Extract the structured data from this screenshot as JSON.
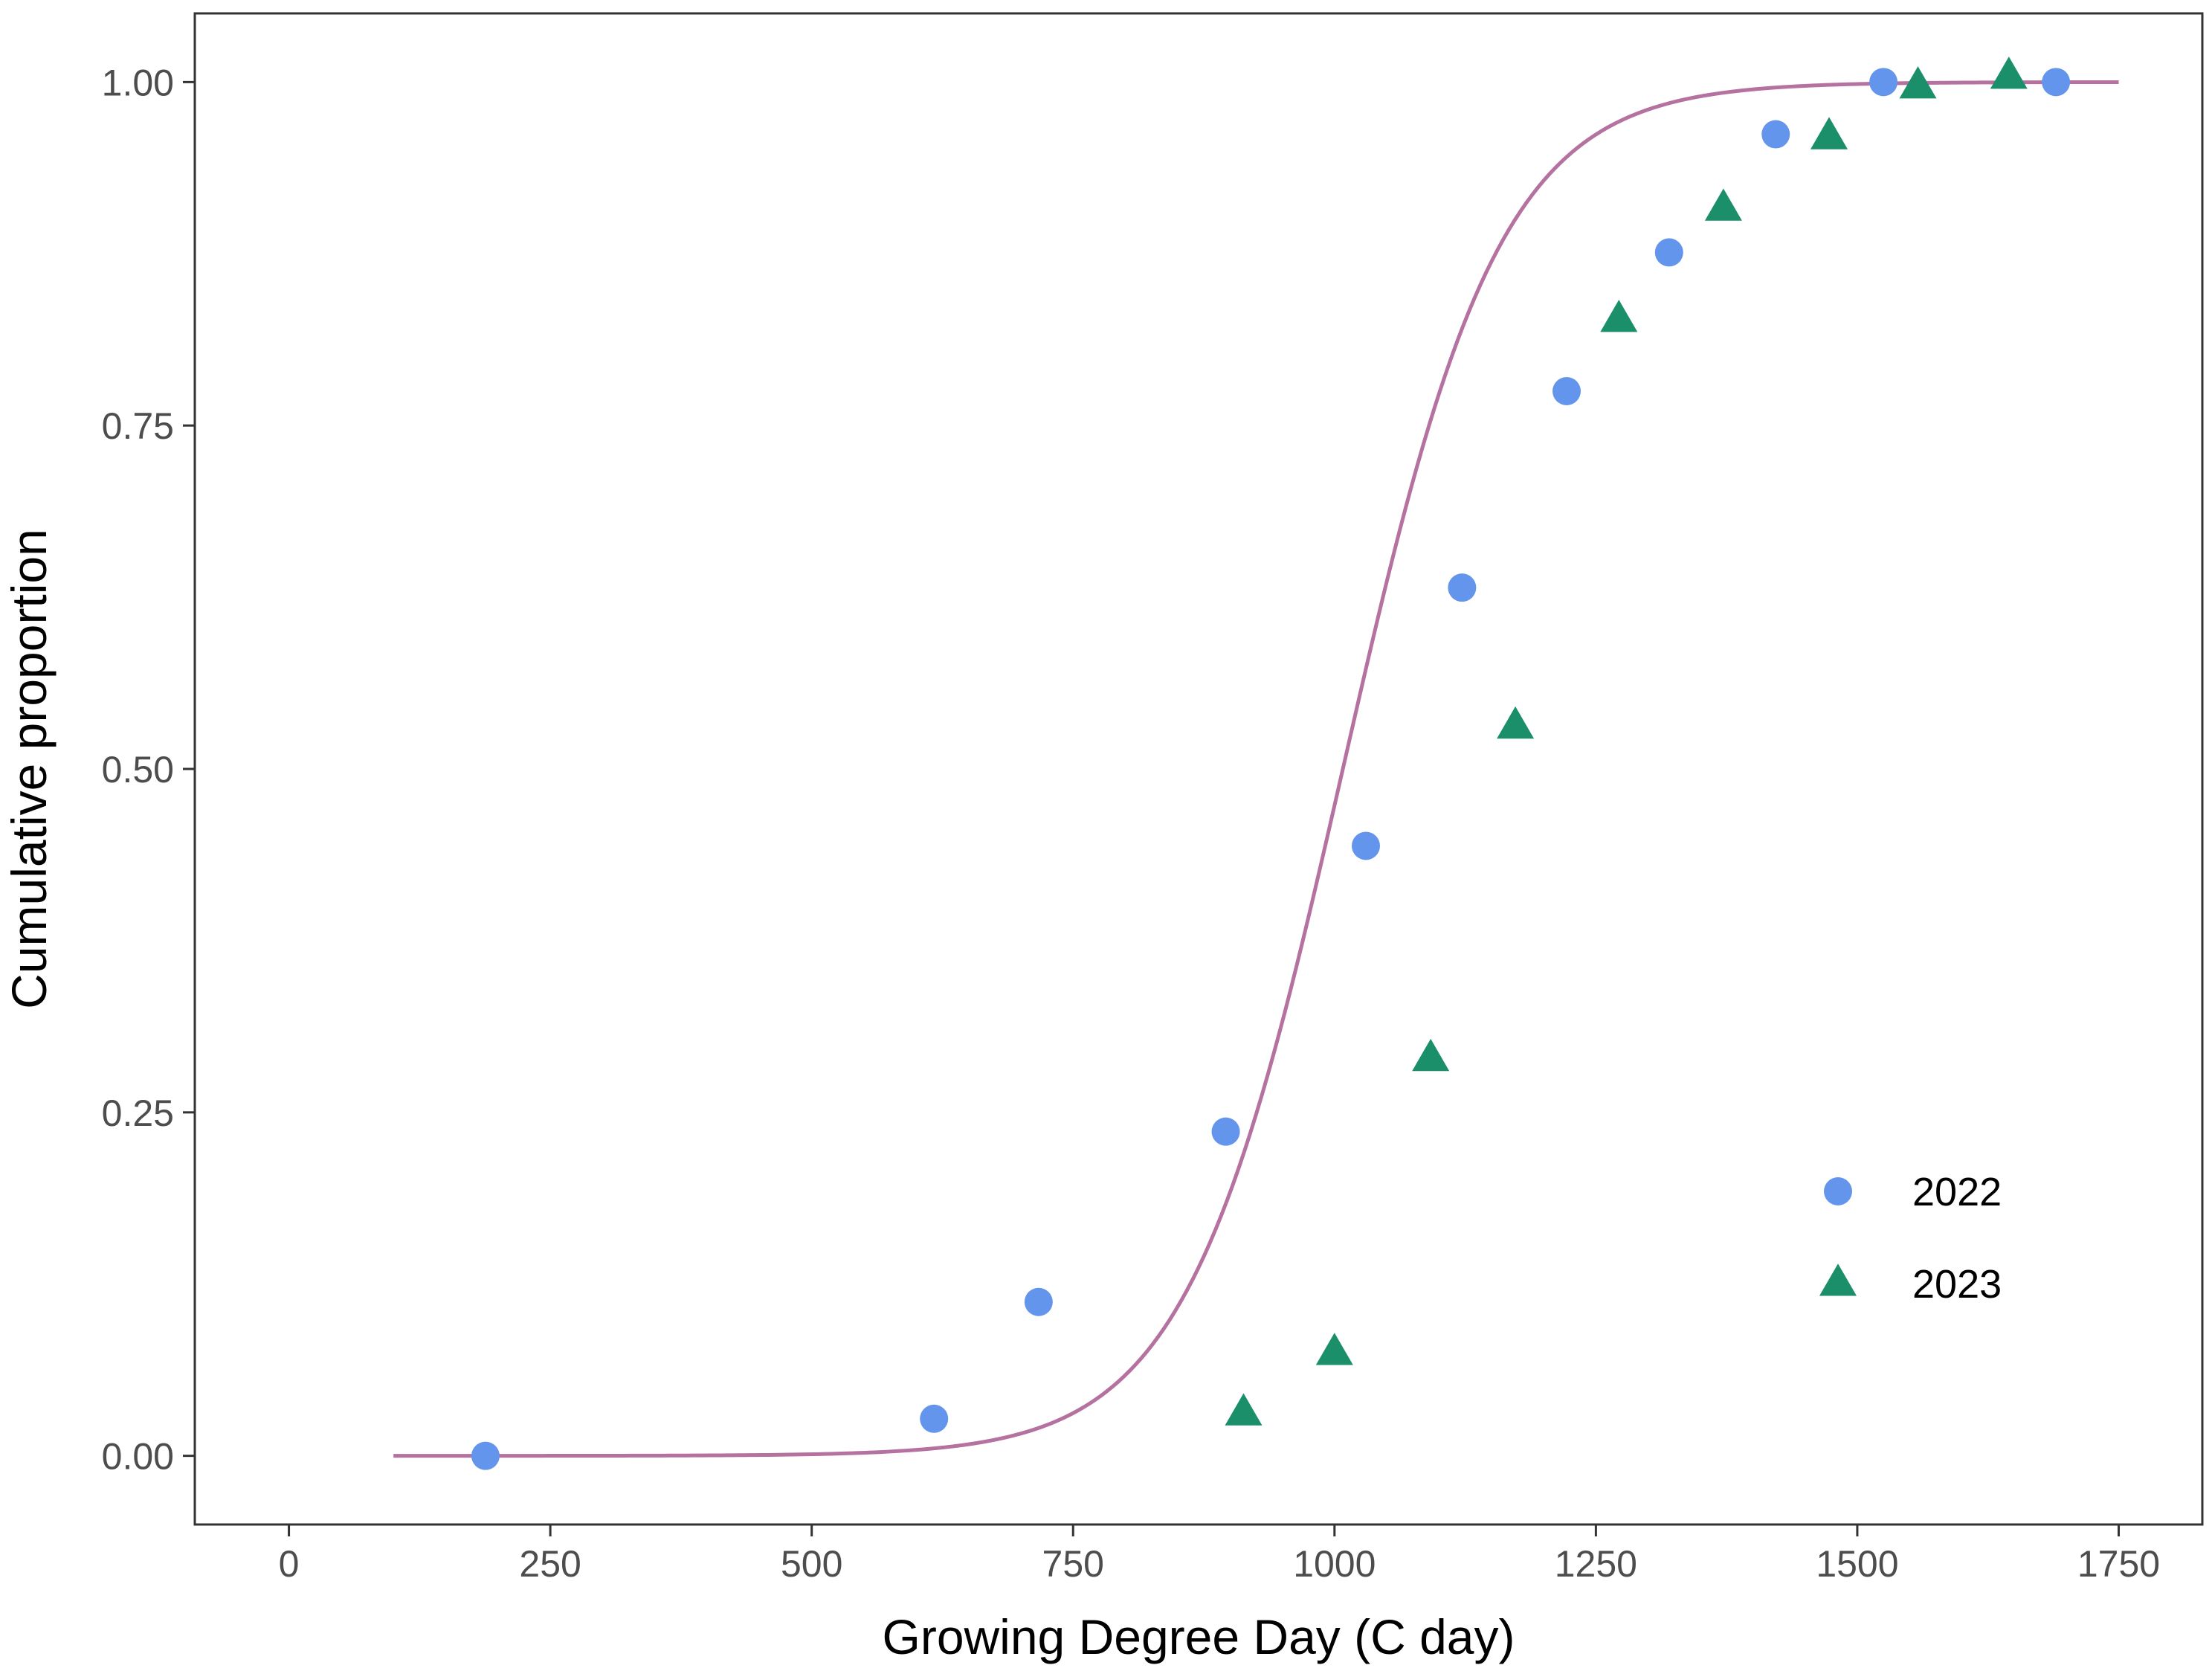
{
  "chart_data": {
    "type": "scatter",
    "title": "",
    "xlabel": "Growing Degree Day (C day)",
    "ylabel": "Cumulative proportion",
    "xlim": [
      -90,
      1830
    ],
    "ylim": [
      -0.05,
      1.05
    ],
    "grid": false,
    "x_ticks": [
      0,
      250,
      500,
      750,
      1000,
      1250,
      1500,
      1750
    ],
    "x_tick_labels": [
      "0",
      "250",
      "500",
      "750",
      "1000",
      "1250",
      "1500",
      "1750"
    ],
    "y_ticks": [
      0,
      0.25,
      0.5,
      0.75,
      1.0
    ],
    "y_tick_labels": [
      "0.00",
      "0.25",
      "0.50",
      "0.75",
      "1.00"
    ],
    "legend_position": "bottom-right (inside plot)",
    "series": [
      {
        "name": "2022",
        "marker": "circle",
        "color": "#6495ED",
        "x": [
          188,
          617,
          717,
          896,
          1030,
          1122,
          1222,
          1320,
          1422,
          1525,
          1690
        ],
        "y": [
          0.0,
          0.027,
          0.112,
          0.236,
          0.444,
          0.632,
          0.775,
          0.876,
          0.962,
          1.0,
          1.0
        ]
      },
      {
        "name": "2023",
        "marker": "triangle",
        "color": "#1A8F6A",
        "x": [
          913,
          1000,
          1092,
          1173,
          1272,
          1372,
          1473,
          1558,
          1645
        ],
        "y": [
          0.031,
          0.075,
          0.289,
          0.531,
          0.827,
          0.908,
          0.96,
          0.997,
          1.004
        ]
      }
    ],
    "fitted_curve": {
      "name": "logistic fit",
      "color": "#B5719F",
      "model": "logistic",
      "midpoint": 1008,
      "scale": 75,
      "x_range": [
        100,
        1750
      ]
    }
  }
}
